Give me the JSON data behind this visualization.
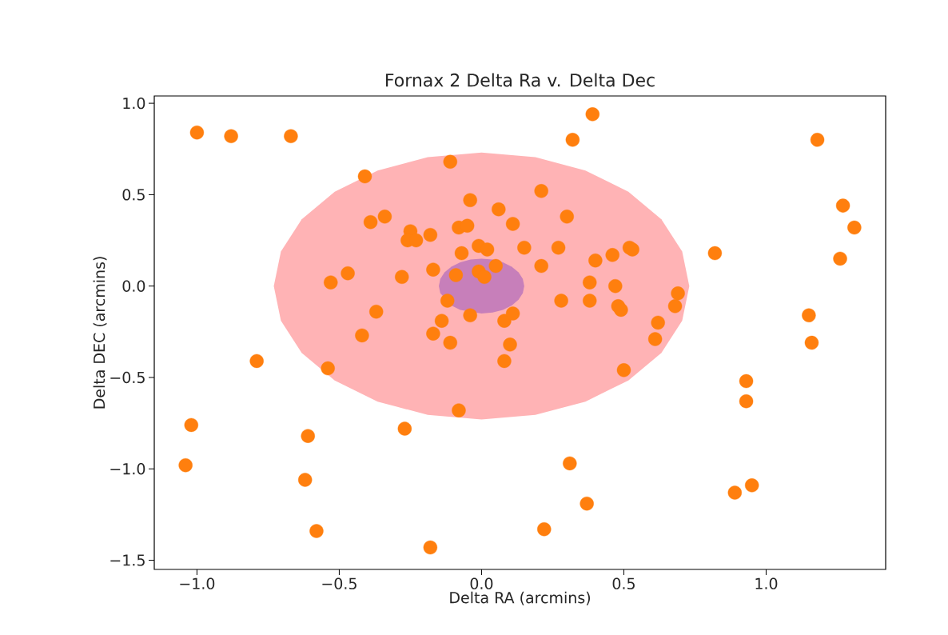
{
  "chart_data": {
    "type": "scatter",
    "title": "Fornax 2 Delta Ra v. Delta Dec",
    "xlabel": "Delta RA (arcmins)",
    "ylabel": "Delta DEC (arcmins)",
    "xlim": [
      -1.15,
      1.42
    ],
    "ylim": [
      -1.55,
      1.04
    ],
    "xticks": [
      {
        "value": -1.0,
        "label": "−1.0"
      },
      {
        "value": -0.5,
        "label": "−0.5"
      },
      {
        "value": 0.0,
        "label": "0.0"
      },
      {
        "value": 0.5,
        "label": "0.5"
      },
      {
        "value": 1.0,
        "label": "1.0"
      }
    ],
    "yticks": [
      {
        "value": -1.5,
        "label": "−1.5"
      },
      {
        "value": -1.0,
        "label": "−1.0"
      },
      {
        "value": -0.5,
        "label": "−0.5"
      },
      {
        "value": 0.0,
        "label": "0.0"
      },
      {
        "value": 0.5,
        "label": "0.5"
      },
      {
        "value": 1.0,
        "label": "1.0"
      }
    ],
    "marker": "circle",
    "series": [
      {
        "type": "area",
        "marker": "none",
        "color": "#ffb3b5",
        "x": [
          0.73,
          0.705,
          0.632,
          0.516,
          0.365,
          0.189,
          0,
          -0.189,
          -0.365,
          -0.516,
          -0.632,
          -0.705,
          -0.73,
          -0.705,
          -0.632,
          -0.516,
          -0.365,
          -0.189,
          0,
          0.189,
          0.365,
          0.516,
          0.632,
          0.705
        ],
        "values": [
          0,
          0.189,
          0.365,
          0.516,
          0.632,
          0.705,
          0.73,
          0.705,
          0.632,
          0.516,
          0.365,
          0.189,
          0,
          -0.189,
          -0.365,
          -0.516,
          -0.632,
          -0.705,
          -0.73,
          -0.705,
          -0.632,
          -0.516,
          -0.365,
          -0.189
        ]
      },
      {
        "type": "area",
        "marker": "none",
        "color": "#c77fba",
        "x": [
          0.15,
          0.145,
          0.13,
          0.106,
          0.075,
          0.039,
          0,
          -0.039,
          -0.075,
          -0.106,
          -0.13,
          -0.145,
          -0.15,
          -0.145,
          -0.13,
          -0.106,
          -0.075,
          -0.039,
          0,
          0.039,
          0.075,
          0.106,
          0.13,
          0.145
        ],
        "values": [
          0,
          0.039,
          0.075,
          0.106,
          0.13,
          0.145,
          0.15,
          0.145,
          0.13,
          0.106,
          0.075,
          0.039,
          0,
          -0.039,
          null,
          -0.106,
          -0.13,
          null,
          -0.15,
          -0.145,
          -0.13,
          -0.106,
          -0.075,
          -0.039
        ]
      },
      {
        "type": "scatter",
        "color": "#ff7f0e",
        "x": [
          -1.0,
          -0.88,
          -0.67,
          -0.41,
          -0.11,
          0.39,
          0.32,
          1.18,
          -0.39,
          -0.34,
          -0.25,
          -0.26,
          -0.23,
          -0.18,
          -0.04,
          0.06,
          0.21,
          0.11,
          0.3,
          -0.08,
          -0.05,
          -0.07,
          -0.01,
          0.02,
          0.05,
          -0.17,
          0.15,
          0.21,
          0.27,
          0.4,
          0.46,
          0.52,
          0.53,
          0.82,
          1.27,
          1.31,
          1.26,
          -0.47,
          -0.53,
          -0.28,
          -0.09,
          -0.01,
          0.01,
          -0.12,
          -0.37,
          -0.42,
          -0.14,
          -0.17,
          -0.04,
          -0.11,
          0.08,
          0.11,
          0.1,
          0.08,
          0.28,
          0.38,
          0.38,
          0.47,
          0.48,
          0.49,
          0.69,
          0.68,
          0.62,
          0.61,
          0.5,
          1.15,
          1.16,
          0.93,
          0.93,
          -0.79,
          -0.54,
          -0.08,
          -0.27,
          -1.02,
          -1.04,
          -0.61,
          -0.62,
          -0.58,
          -0.18,
          0.31,
          0.37,
          0.22,
          0.89,
          0.95
        ],
        "values": [
          0.84,
          0.82,
          0.82,
          0.6,
          0.68,
          0.94,
          0.8,
          0.8,
          0.35,
          0.38,
          0.3,
          0.25,
          0.25,
          0.28,
          0.47,
          0.42,
          0.52,
          0.34,
          0.38,
          0.32,
          0.33,
          0.18,
          0.22,
          0.2,
          0.11,
          0.09,
          0.21,
          0.11,
          0.21,
          0.14,
          0.17,
          0.21,
          0.2,
          0.18,
          0.44,
          0.32,
          0.15,
          0.07,
          0.02,
          0.05,
          0.06,
          0.08,
          0.05,
          -0.08,
          -0.14,
          -0.27,
          -0.19,
          -0.26,
          -0.16,
          -0.31,
          -0.19,
          -0.15,
          -0.32,
          -0.41,
          -0.08,
          0.02,
          -0.08,
          0.0,
          -0.11,
          -0.13,
          -0.04,
          -0.11,
          -0.2,
          -0.29,
          -0.46,
          -0.16,
          -0.31,
          -0.52,
          -0.63,
          -0.41,
          -0.45,
          -0.68,
          -0.78,
          -0.76,
          -0.98,
          -0.82,
          -1.06,
          -1.34,
          -1.43,
          -0.97,
          -1.19,
          -1.33,
          -1.13,
          -1.09
        ]
      }
    ]
  }
}
